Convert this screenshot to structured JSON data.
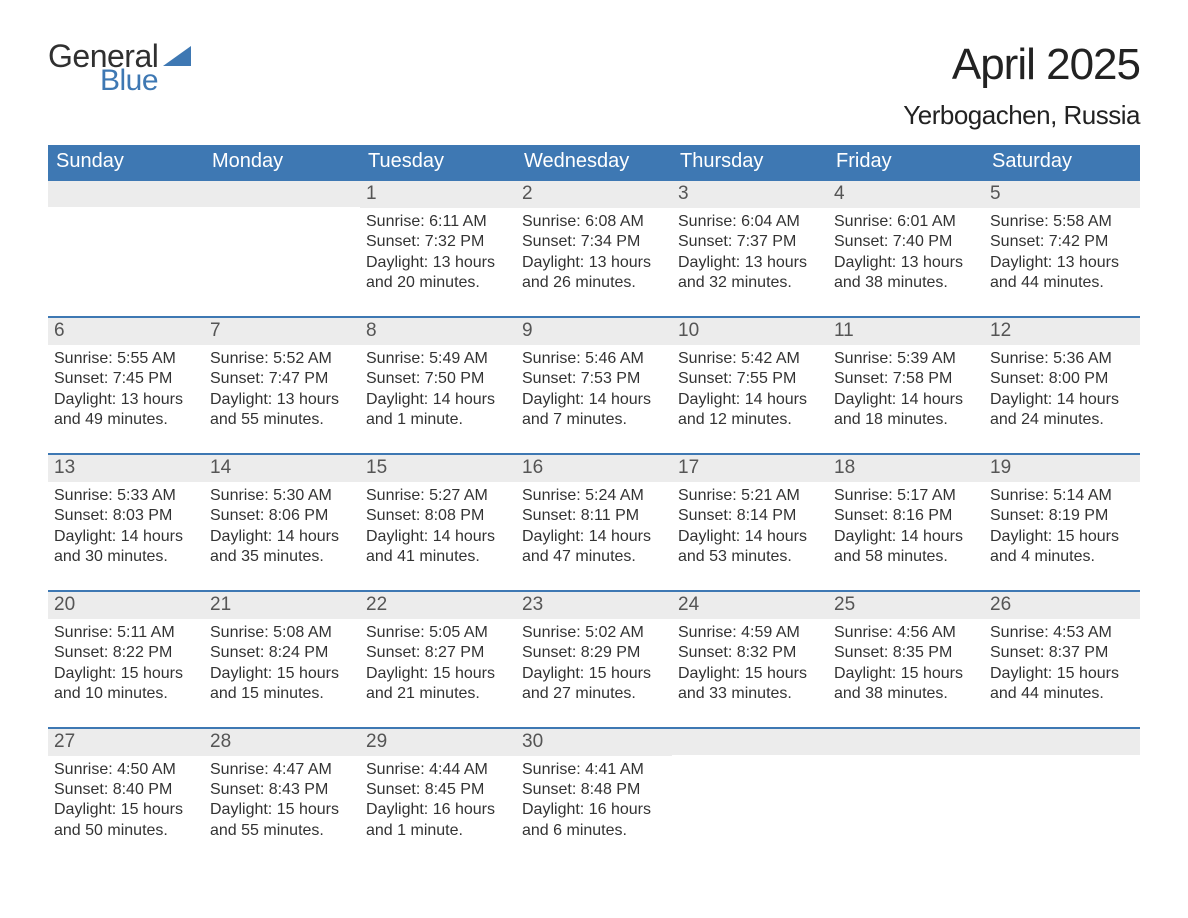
{
  "brand": {
    "word1": "General",
    "word2": "Blue",
    "word1_color": "#303030",
    "word2_color": "#3e78b3",
    "sail_color": "#3e78b3"
  },
  "header": {
    "month_title": "April 2025",
    "location": "Yerbogachen, Russia"
  },
  "styling": {
    "header_bg": "#3e78b3",
    "header_text": "#ffffff",
    "daynum_bg": "#ececec",
    "daynum_text": "#555555",
    "row_divider": "#3e78b3",
    "body_text": "#333333",
    "page_bg": "#ffffff",
    "weekday_fontsize": 20,
    "daynum_fontsize": 19,
    "body_fontsize": 16,
    "month_fontsize": 44,
    "location_fontsize": 26
  },
  "weekdays": [
    "Sunday",
    "Monday",
    "Tuesday",
    "Wednesday",
    "Thursday",
    "Friday",
    "Saturday"
  ],
  "weeks": [
    [
      {
        "num": "",
        "sunrise": "",
        "sunset": "",
        "daylight": ""
      },
      {
        "num": "",
        "sunrise": "",
        "sunset": "",
        "daylight": ""
      },
      {
        "num": "1",
        "sunrise": "Sunrise: 6:11 AM",
        "sunset": "Sunset: 7:32 PM",
        "daylight": "Daylight: 13 hours and 20 minutes."
      },
      {
        "num": "2",
        "sunrise": "Sunrise: 6:08 AM",
        "sunset": "Sunset: 7:34 PM",
        "daylight": "Daylight: 13 hours and 26 minutes."
      },
      {
        "num": "3",
        "sunrise": "Sunrise: 6:04 AM",
        "sunset": "Sunset: 7:37 PM",
        "daylight": "Daylight: 13 hours and 32 minutes."
      },
      {
        "num": "4",
        "sunrise": "Sunrise: 6:01 AM",
        "sunset": "Sunset: 7:40 PM",
        "daylight": "Daylight: 13 hours and 38 minutes."
      },
      {
        "num": "5",
        "sunrise": "Sunrise: 5:58 AM",
        "sunset": "Sunset: 7:42 PM",
        "daylight": "Daylight: 13 hours and 44 minutes."
      }
    ],
    [
      {
        "num": "6",
        "sunrise": "Sunrise: 5:55 AM",
        "sunset": "Sunset: 7:45 PM",
        "daylight": "Daylight: 13 hours and 49 minutes."
      },
      {
        "num": "7",
        "sunrise": "Sunrise: 5:52 AM",
        "sunset": "Sunset: 7:47 PM",
        "daylight": "Daylight: 13 hours and 55 minutes."
      },
      {
        "num": "8",
        "sunrise": "Sunrise: 5:49 AM",
        "sunset": "Sunset: 7:50 PM",
        "daylight": "Daylight: 14 hours and 1 minute."
      },
      {
        "num": "9",
        "sunrise": "Sunrise: 5:46 AM",
        "sunset": "Sunset: 7:53 PM",
        "daylight": "Daylight: 14 hours and 7 minutes."
      },
      {
        "num": "10",
        "sunrise": "Sunrise: 5:42 AM",
        "sunset": "Sunset: 7:55 PM",
        "daylight": "Daylight: 14 hours and 12 minutes."
      },
      {
        "num": "11",
        "sunrise": "Sunrise: 5:39 AM",
        "sunset": "Sunset: 7:58 PM",
        "daylight": "Daylight: 14 hours and 18 minutes."
      },
      {
        "num": "12",
        "sunrise": "Sunrise: 5:36 AM",
        "sunset": "Sunset: 8:00 PM",
        "daylight": "Daylight: 14 hours and 24 minutes."
      }
    ],
    [
      {
        "num": "13",
        "sunrise": "Sunrise: 5:33 AM",
        "sunset": "Sunset: 8:03 PM",
        "daylight": "Daylight: 14 hours and 30 minutes."
      },
      {
        "num": "14",
        "sunrise": "Sunrise: 5:30 AM",
        "sunset": "Sunset: 8:06 PM",
        "daylight": "Daylight: 14 hours and 35 minutes."
      },
      {
        "num": "15",
        "sunrise": "Sunrise: 5:27 AM",
        "sunset": "Sunset: 8:08 PM",
        "daylight": "Daylight: 14 hours and 41 minutes."
      },
      {
        "num": "16",
        "sunrise": "Sunrise: 5:24 AM",
        "sunset": "Sunset: 8:11 PM",
        "daylight": "Daylight: 14 hours and 47 minutes."
      },
      {
        "num": "17",
        "sunrise": "Sunrise: 5:21 AM",
        "sunset": "Sunset: 8:14 PM",
        "daylight": "Daylight: 14 hours and 53 minutes."
      },
      {
        "num": "18",
        "sunrise": "Sunrise: 5:17 AM",
        "sunset": "Sunset: 8:16 PM",
        "daylight": "Daylight: 14 hours and 58 minutes."
      },
      {
        "num": "19",
        "sunrise": "Sunrise: 5:14 AM",
        "sunset": "Sunset: 8:19 PM",
        "daylight": "Daylight: 15 hours and 4 minutes."
      }
    ],
    [
      {
        "num": "20",
        "sunrise": "Sunrise: 5:11 AM",
        "sunset": "Sunset: 8:22 PM",
        "daylight": "Daylight: 15 hours and 10 minutes."
      },
      {
        "num": "21",
        "sunrise": "Sunrise: 5:08 AM",
        "sunset": "Sunset: 8:24 PM",
        "daylight": "Daylight: 15 hours and 15 minutes."
      },
      {
        "num": "22",
        "sunrise": "Sunrise: 5:05 AM",
        "sunset": "Sunset: 8:27 PM",
        "daylight": "Daylight: 15 hours and 21 minutes."
      },
      {
        "num": "23",
        "sunrise": "Sunrise: 5:02 AM",
        "sunset": "Sunset: 8:29 PM",
        "daylight": "Daylight: 15 hours and 27 minutes."
      },
      {
        "num": "24",
        "sunrise": "Sunrise: 4:59 AM",
        "sunset": "Sunset: 8:32 PM",
        "daylight": "Daylight: 15 hours and 33 minutes."
      },
      {
        "num": "25",
        "sunrise": "Sunrise: 4:56 AM",
        "sunset": "Sunset: 8:35 PM",
        "daylight": "Daylight: 15 hours and 38 minutes."
      },
      {
        "num": "26",
        "sunrise": "Sunrise: 4:53 AM",
        "sunset": "Sunset: 8:37 PM",
        "daylight": "Daylight: 15 hours and 44 minutes."
      }
    ],
    [
      {
        "num": "27",
        "sunrise": "Sunrise: 4:50 AM",
        "sunset": "Sunset: 8:40 PM",
        "daylight": "Daylight: 15 hours and 50 minutes."
      },
      {
        "num": "28",
        "sunrise": "Sunrise: 4:47 AM",
        "sunset": "Sunset: 8:43 PM",
        "daylight": "Daylight: 15 hours and 55 minutes."
      },
      {
        "num": "29",
        "sunrise": "Sunrise: 4:44 AM",
        "sunset": "Sunset: 8:45 PM",
        "daylight": "Daylight: 16 hours and 1 minute."
      },
      {
        "num": "30",
        "sunrise": "Sunrise: 4:41 AM",
        "sunset": "Sunset: 8:48 PM",
        "daylight": "Daylight: 16 hours and 6 minutes."
      },
      {
        "num": "",
        "sunrise": "",
        "sunset": "",
        "daylight": ""
      },
      {
        "num": "",
        "sunrise": "",
        "sunset": "",
        "daylight": ""
      },
      {
        "num": "",
        "sunrise": "",
        "sunset": "",
        "daylight": ""
      }
    ]
  ]
}
